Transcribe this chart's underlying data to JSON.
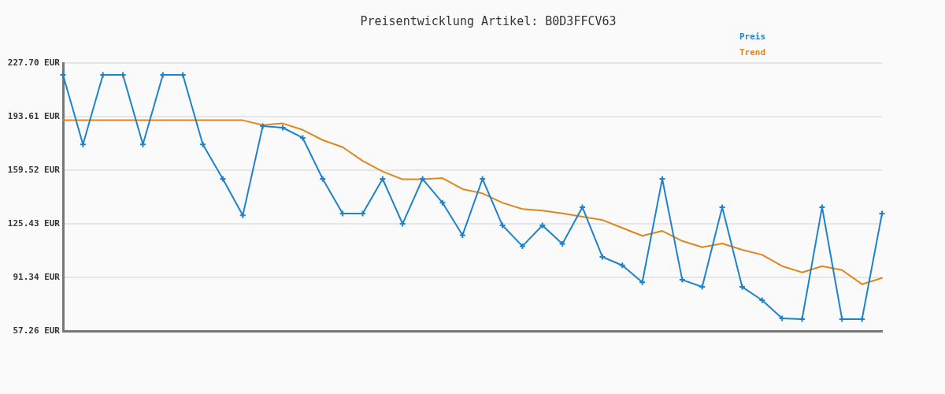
{
  "chart_data": {
    "type": "line",
    "title": "Preisentwicklung Artikel: B0D3FFCV63",
    "categories": [
      null,
      null,
      null,
      null,
      null,
      null,
      null,
      null,
      null,
      null,
      null,
      null,
      null,
      null,
      null,
      null,
      null,
      null,
      null,
      null,
      null,
      null,
      null,
      null,
      null,
      null,
      null,
      null,
      null,
      null,
      null,
      null,
      null,
      null,
      null,
      null,
      null,
      null,
      null,
      null,
      null,
      null
    ],
    "series": [
      {
        "name": "Preis",
        "color": "#1e82cd",
        "marker": "cross",
        "values": [
          220.2,
          175.9,
          220.2,
          220.2,
          175.9,
          220.2,
          220.2,
          175.9,
          154.0,
          130.8,
          187.6,
          186.6,
          180.1,
          154.0,
          131.9,
          131.9,
          154.0,
          125.4,
          154.0,
          138.8,
          118.2,
          154.0,
          124.4,
          111.2,
          124.4,
          112.7,
          136.0,
          104.4,
          99.0,
          88.2,
          154.0,
          89.8,
          85.3,
          136.0,
          85.3,
          76.8,
          65.3,
          64.8,
          136.0,
          64.8,
          64.8,
          131.9
        ]
      },
      {
        "name": "Trend",
        "color": "#e0861e",
        "marker": "none",
        "values": [
          191.3,
          191.3,
          191.3,
          191.3,
          191.3,
          191.3,
          191.3,
          191.3,
          191.3,
          191.3,
          188.2,
          189.3,
          185.2,
          178.7,
          174.2,
          165.5,
          158.7,
          153.7,
          153.7,
          154.5,
          147.5,
          144.8,
          138.8,
          134.8,
          133.8,
          132.1,
          129.9,
          127.9,
          122.8,
          117.8,
          120.9,
          114.5,
          110.5,
          112.9,
          108.9,
          105.7,
          98.5,
          94.5,
          98.5,
          96.0,
          87.0,
          91.0
        ]
      }
    ],
    "ylim": [
      57.26,
      227.7
    ],
    "yticks": [
      {
        "value": 57.26,
        "label": "57.26 EUR"
      },
      {
        "value": 91.34,
        "label": "91.34 EUR"
      },
      {
        "value": 125.43,
        "label": "125.43 EUR"
      },
      {
        "value": 159.52,
        "label": "159.52 EUR"
      },
      {
        "value": 193.61,
        "label": "193.61 EUR"
      },
      {
        "value": 227.7,
        "label": "227.70 EUR"
      }
    ],
    "grid": "y",
    "legend": "top right",
    "tick_labels": "y"
  }
}
